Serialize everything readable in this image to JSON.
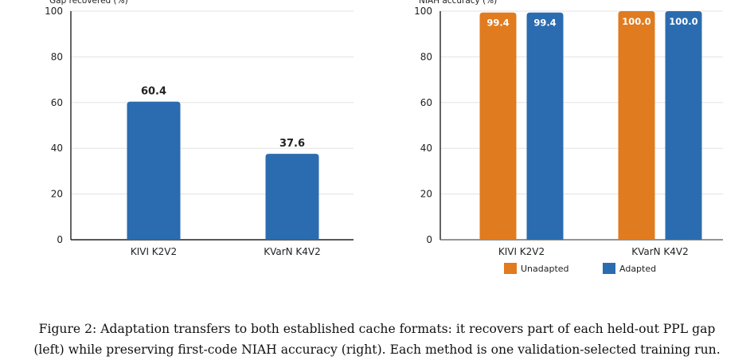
{
  "chart_data": [
    {
      "type": "bar",
      "ylabel": "Gap recovered (%)",
      "categories": [
        "KIVI K2V2",
        "KVarN K4V2"
      ],
      "series": [
        {
          "values": [
            60.4,
            37.6
          ],
          "color": "#2b6cb0"
        }
      ],
      "data_labels": [
        "60.4",
        "37.6"
      ],
      "ylim": [
        0,
        100
      ],
      "yticks": [
        "0",
        "20",
        "40",
        "60",
        "80",
        "100"
      ],
      "grid": true,
      "legend": "none"
    },
    {
      "type": "bar",
      "ylabel": "NIAH accuracy (%)",
      "categories": [
        "KIVI K2V2",
        "KVarN K4V2"
      ],
      "series": [
        {
          "name": "Unadapted",
          "values": [
            99.4,
            100.0
          ],
          "color": "#e07b1f",
          "labels": [
            "99.4",
            "100.0"
          ]
        },
        {
          "name": "Adapted",
          "values": [
            99.4,
            100.0
          ],
          "color": "#2b6cb0",
          "labels": [
            "99.4",
            "100.0"
          ]
        }
      ],
      "ylim": [
        0,
        100
      ],
      "yticks": [
        "0",
        "20",
        "40",
        "60",
        "80",
        "100"
      ],
      "grid": true,
      "legend": "bottom"
    }
  ],
  "caption": {
    "line1": "Figure 2: Adaptation transfers to both established cache formats: it recovers part of each held-out PPL gap",
    "line2": "(left) while preserving first-code NIAH accuracy (right). Each method is one validation-selected training run."
  }
}
